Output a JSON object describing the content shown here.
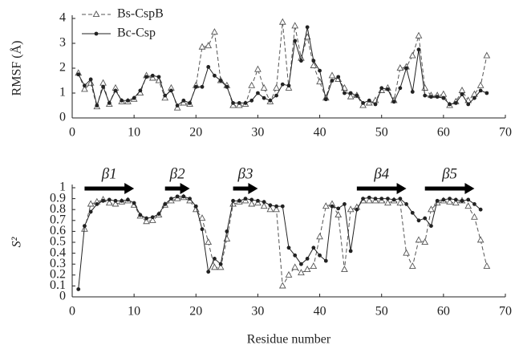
{
  "chart_data": [
    {
      "type": "line",
      "ylabel": "RMSF (Å)",
      "legend": "upper left",
      "x": [
        1,
        2,
        3,
        4,
        5,
        6,
        7,
        8,
        9,
        10,
        11,
        12,
        13,
        14,
        15,
        16,
        17,
        18,
        19,
        20,
        21,
        22,
        23,
        24,
        25,
        26,
        27,
        28,
        29,
        30,
        31,
        32,
        33,
        34,
        35,
        36,
        37,
        38,
        39,
        40,
        41,
        42,
        43,
        44,
        45,
        46,
        47,
        48,
        49,
        50,
        51,
        52,
        53,
        54,
        55,
        56,
        57,
        58,
        59,
        60,
        61,
        62,
        63,
        64,
        65,
        66,
        67
      ],
      "xlim": [
        0,
        70
      ],
      "xticks": [
        0,
        10,
        20,
        30,
        40,
        50,
        60,
        70
      ],
      "ylim": [
        0,
        4
      ],
      "yticks": [
        0,
        1,
        2,
        3,
        4
      ],
      "series": [
        {
          "name": "Bs-CspB",
          "color": "#555555",
          "dash": true,
          "marker": "triangle",
          "values": [
            1.8,
            1.15,
            1.4,
            0.45,
            1.4,
            0.55,
            1.2,
            0.65,
            0.65,
            0.75,
            1.0,
            1.7,
            1.6,
            1.5,
            0.8,
            1.2,
            0.4,
            0.6,
            0.55,
            1.3,
            2.85,
            2.9,
            3.45,
            1.5,
            1.3,
            0.5,
            0.5,
            0.55,
            1.3,
            1.95,
            1.2,
            0.65,
            1.2,
            3.85,
            1.2,
            3.7,
            2.4,
            3.25,
            2.1,
            1.45,
            0.8,
            1.7,
            1.55,
            1.2,
            0.85,
            0.9,
            0.5,
            0.6,
            0.7,
            1.1,
            1.2,
            0.7,
            2.0,
            2.05,
            2.5,
            3.3,
            1.2,
            0.9,
            0.9,
            0.95,
            0.5,
            0.65,
            1.1,
            0.7,
            0.95,
            1.3,
            2.5
          ]
        },
        {
          "name": "Bc-Csp",
          "color": "#222222",
          "dash": false,
          "marker": "circle",
          "values": [
            1.75,
            1.3,
            1.55,
            0.5,
            1.25,
            0.6,
            1.1,
            0.7,
            0.7,
            0.8,
            1.1,
            1.65,
            1.7,
            1.65,
            0.9,
            1.1,
            0.5,
            0.7,
            0.6,
            1.25,
            1.25,
            2.05,
            1.7,
            1.5,
            1.25,
            0.6,
            0.6,
            0.6,
            0.7,
            1.0,
            0.8,
            0.7,
            0.9,
            1.35,
            1.3,
            3.1,
            2.3,
            3.65,
            2.3,
            1.9,
            0.75,
            1.5,
            1.65,
            1.0,
            1.0,
            0.9,
            0.6,
            0.7,
            0.55,
            1.2,
            1.15,
            0.65,
            1.2,
            2.0,
            1.05,
            2.75,
            0.9,
            0.85,
            0.85,
            0.8,
            0.55,
            0.6,
            0.95,
            0.55,
            0.8,
            1.1,
            1.0
          ]
        }
      ]
    },
    {
      "type": "line",
      "ylabel": "S²",
      "xlabel": "Residue number",
      "x": [
        1,
        2,
        3,
        4,
        5,
        6,
        7,
        8,
        9,
        10,
        11,
        12,
        13,
        14,
        15,
        16,
        17,
        18,
        19,
        20,
        21,
        22,
        23,
        24,
        25,
        26,
        27,
        28,
        29,
        30,
        31,
        32,
        33,
        34,
        35,
        36,
        37,
        38,
        39,
        40,
        41,
        42,
        43,
        44,
        45,
        46,
        47,
        48,
        49,
        50,
        51,
        52,
        53,
        54,
        55,
        56,
        57,
        58,
        59,
        60,
        61,
        62,
        63,
        64,
        65,
        66,
        67
      ],
      "xlim": [
        0,
        70
      ],
      "xticks": [
        0,
        10,
        20,
        30,
        40,
        50,
        60,
        70
      ],
      "ylim": [
        0,
        1
      ],
      "yticks": [
        0,
        0.1,
        0.2,
        0.3,
        0.4,
        0.5,
        0.6,
        0.7,
        0.8,
        0.9,
        1
      ],
      "annotations": [
        {
          "label": "β1",
          "start": 2,
          "end": 10
        },
        {
          "label": "β2",
          "start": 15,
          "end": 19
        },
        {
          "label": "β3",
          "start": 26,
          "end": 30
        },
        {
          "label": "β4",
          "start": 46,
          "end": 54
        },
        {
          "label": "β5",
          "start": 57,
          "end": 65
        }
      ],
      "series": [
        {
          "name": "Bs-CspB",
          "color": "#555555",
          "dash": true,
          "marker": "triangle",
          "values": [
            null,
            0.62,
            0.85,
            0.87,
            0.89,
            0.86,
            0.85,
            0.87,
            0.88,
            0.84,
            0.74,
            0.69,
            0.7,
            0.75,
            0.84,
            0.88,
            0.9,
            0.91,
            0.88,
            0.8,
            0.72,
            0.5,
            0.27,
            0.27,
            0.53,
            0.85,
            0.87,
            0.88,
            0.85,
            0.86,
            0.83,
            0.8,
            0.8,
            0.1,
            0.2,
            0.27,
            0.22,
            0.25,
            0.28,
            0.55,
            0.83,
            0.85,
            0.75,
            0.25,
            0.8,
            0.82,
            0.88,
            0.88,
            0.88,
            0.88,
            0.86,
            0.88,
            0.86,
            0.4,
            0.28,
            0.52,
            0.5,
            0.8,
            0.86,
            0.88,
            0.87,
            0.86,
            0.88,
            0.83,
            0.73,
            0.52,
            0.28
          ]
        },
        {
          "name": "Bc-Csp",
          "color": "#222222",
          "dash": false,
          "marker": "circle",
          "values": [
            0.07,
            0.65,
            0.78,
            0.85,
            0.88,
            0.89,
            0.88,
            0.88,
            0.89,
            0.86,
            0.75,
            0.72,
            0.73,
            0.76,
            0.85,
            0.9,
            0.92,
            0.92,
            0.9,
            0.83,
            0.62,
            0.23,
            0.35,
            0.3,
            0.6,
            0.88,
            0.88,
            0.9,
            0.89,
            0.88,
            0.87,
            0.84,
            0.83,
            0.83,
            0.45,
            0.38,
            0.3,
            0.35,
            0.45,
            0.38,
            0.33,
            0.83,
            0.81,
            0.85,
            0.42,
            0.8,
            0.9,
            0.91,
            0.9,
            0.9,
            0.9,
            0.89,
            0.9,
            0.85,
            0.77,
            0.7,
            0.72,
            0.65,
            0.88,
            0.89,
            0.9,
            0.89,
            0.88,
            0.89,
            0.85,
            0.8,
            null
          ]
        }
      ]
    }
  ]
}
